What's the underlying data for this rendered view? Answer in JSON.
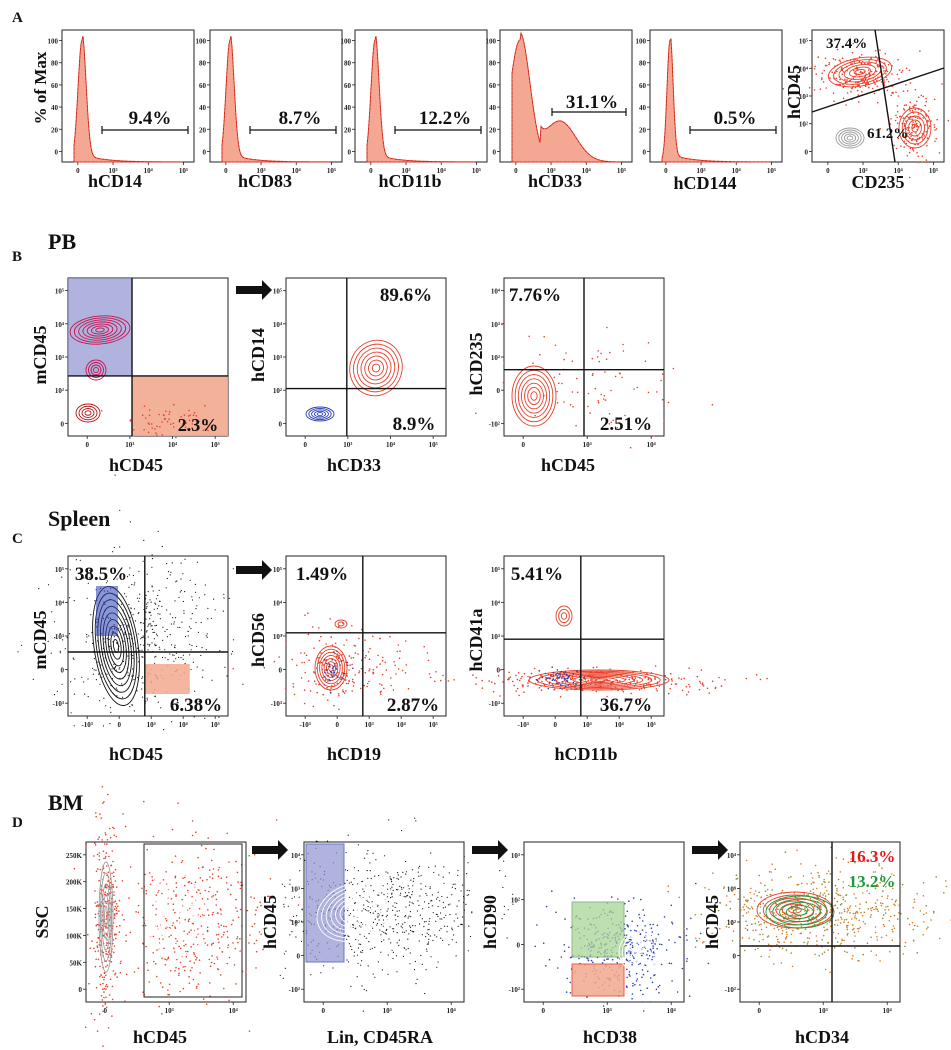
{
  "colors": {
    "red": "#e8402a",
    "red_fill": "#f4a793",
    "dark_red": "#b01818",
    "magenta": "#c8104a",
    "blue": "#2a3fb5",
    "blue_gate": "#8f93cf",
    "red_gate": "#f2a98e",
    "green_gate": "#a9d596",
    "green_text": "#1e9a3c",
    "red_text": "#e5161b",
    "gray": "#9a9a9a",
    "orange": "#e07a20",
    "olive": "#8a8a30",
    "black": "#111111"
  },
  "panels": {
    "A": {
      "label": "A",
      "y_axis_title": "% of Max",
      "y_ticks": [
        "100",
        "80",
        "60",
        "40",
        "20",
        "0"
      ],
      "histograms": [
        {
          "marker": "hCD14",
          "percent": "9.4%"
        },
        {
          "marker": "hCD83",
          "percent": "8.7%"
        },
        {
          "marker": "hCD11b",
          "percent": "12.2%"
        },
        {
          "marker": "hCD33",
          "percent": "31.1%"
        },
        {
          "marker": "hCD144",
          "percent": "0.5%"
        }
      ],
      "x_ticks": [
        "0",
        "10³",
        "10⁴",
        "10⁵"
      ],
      "scatter": {
        "x": "CD235",
        "y": "hCD45",
        "top_left": "37.4%",
        "bottom_right": "61.2%",
        "y_ticks": [
          "10⁵",
          "10⁴",
          "10³",
          "10²",
          "0"
        ],
        "x_ticks": [
          "0",
          "10³",
          "10⁴",
          "10⁵"
        ]
      }
    },
    "B": {
      "label": "B",
      "title": "PB",
      "plots": [
        {
          "x": "hCD45",
          "y": "mCD45",
          "bottom_right": "2.3%",
          "x_ticks": [
            "0",
            "10³",
            "10⁴",
            "10⁵"
          ],
          "y_ticks": [
            "10⁵",
            "10⁴",
            "10³",
            "10²",
            "0"
          ]
        },
        {
          "x": "hCD33",
          "y": "hCD14",
          "top_right": "89.6%",
          "bottom_right": "8.9%",
          "x_ticks": [
            "0",
            "10³",
            "10⁴",
            "10⁵"
          ],
          "y_ticks": [
            "10⁵",
            "10⁴",
            "10³",
            "10²",
            "0"
          ]
        },
        {
          "x": "hCD45",
          "y": "hCD235",
          "top_left": "7.76%",
          "bottom_right": "2.51%",
          "x_ticks": [
            "0",
            "10³",
            "10⁴"
          ],
          "y_ticks": [
            "10⁴",
            "10³",
            "10²",
            "0",
            "-10²"
          ]
        }
      ]
    },
    "C": {
      "label": "C",
      "title": "Spleen",
      "plots": [
        {
          "x": "hCD45",
          "y": "mCD45",
          "top_left": "38.5%",
          "bottom_right": "6.38%",
          "x_ticks": [
            "-10³",
            "0",
            "10³",
            "10⁴",
            "10⁵"
          ],
          "y_ticks": [
            "10⁵",
            "10⁴",
            "10³",
            "0",
            "-10³"
          ]
        },
        {
          "x": "hCD19",
          "y": "hCD56",
          "top_left": "1.49%",
          "bottom_right": "2.87%",
          "x_ticks": [
            "-10³",
            "0",
            "10³",
            "10⁴",
            "10⁵"
          ],
          "y_ticks": [
            "10⁵",
            "10⁴",
            "10³",
            "0",
            "-10³"
          ]
        },
        {
          "x": "hCD11b",
          "y": "hCD41a",
          "top_left": "5.41%",
          "bottom_right": "36.7%",
          "x_ticks": [
            "-10³",
            "0",
            "10³",
            "10⁴",
            "10⁵"
          ],
          "y_ticks": [
            "10⁵",
            "10⁴",
            "10³",
            "0",
            "-10³"
          ]
        }
      ]
    },
    "D": {
      "label": "D",
      "title": "BM",
      "plots": [
        {
          "x": "hCD45",
          "y": "SSC",
          "x_ticks": [
            "0",
            "10³",
            "10⁴"
          ],
          "y_ticks": [
            "250K",
            "200K",
            "150K",
            "100K",
            "50K",
            "0"
          ]
        },
        {
          "x": "Lin, CD45RA",
          "y": "hCD45",
          "x_ticks": [
            "0",
            "10³",
            "10⁴"
          ],
          "y_ticks": [
            "10⁴",
            "10³",
            "10²",
            "0",
            "-10²"
          ]
        },
        {
          "x": "hCD38",
          "y": "hCD90",
          "x_ticks": [
            "0",
            "10³",
            "10⁴"
          ],
          "y_ticks": [
            "10³",
            "10²",
            "0",
            "-10²"
          ]
        },
        {
          "x": "hCD34",
          "y": "hCD45",
          "pct_red": "16.3%",
          "pct_green": "13.2%",
          "x_ticks": [
            "0",
            "10³",
            "10⁴"
          ],
          "y_ticks": [
            "10⁴",
            "10³",
            "10²",
            "0",
            "-10²"
          ]
        }
      ]
    }
  }
}
